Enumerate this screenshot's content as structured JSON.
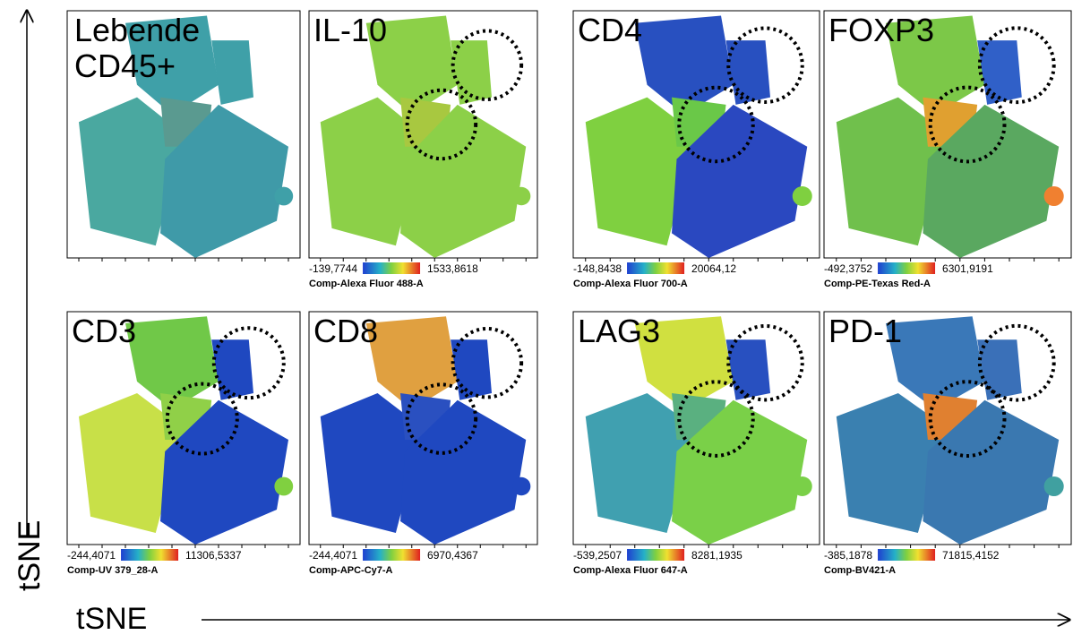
{
  "axes": {
    "y_label": "tSNE",
    "x_label": "tSNE"
  },
  "panels": [
    {
      "label_lines": [
        "Lebende",
        "CD45+"
      ]
    },
    {
      "label": "IL-10",
      "scale_min": "-139,7744",
      "scale_max": "1533,8618",
      "channel": "Comp-Alexa Fluor 488-A"
    },
    {
      "label": "CD4",
      "scale_min": "-148,8438",
      "scale_max": "20064,12",
      "channel": "Comp-Alexa Fluor 700-A"
    },
    {
      "label": "FOXP3",
      "scale_min": "-492,3752",
      "scale_max": "6301,9191",
      "channel": "Comp-PE-Texas Red-A"
    },
    {
      "label": "CD3",
      "scale_min": "-244,4071",
      "scale_max": "11306,5337",
      "channel": "Comp-UV 379_28-A"
    },
    {
      "label": "CD8",
      "scale_min": "-244,4071",
      "scale_max": "6970,4367",
      "channel": "Comp-APC-Cy7-A"
    },
    {
      "label": "LAG3",
      "scale_min": "-539,2507",
      "scale_max": "8281,1935",
      "channel": "Comp-Alexa Fluor 647-A"
    },
    {
      "label": "PD-1",
      "scale_min": "-385,1878",
      "scale_max": "71815,4152",
      "channel": "Comp-BV421-A"
    }
  ]
}
